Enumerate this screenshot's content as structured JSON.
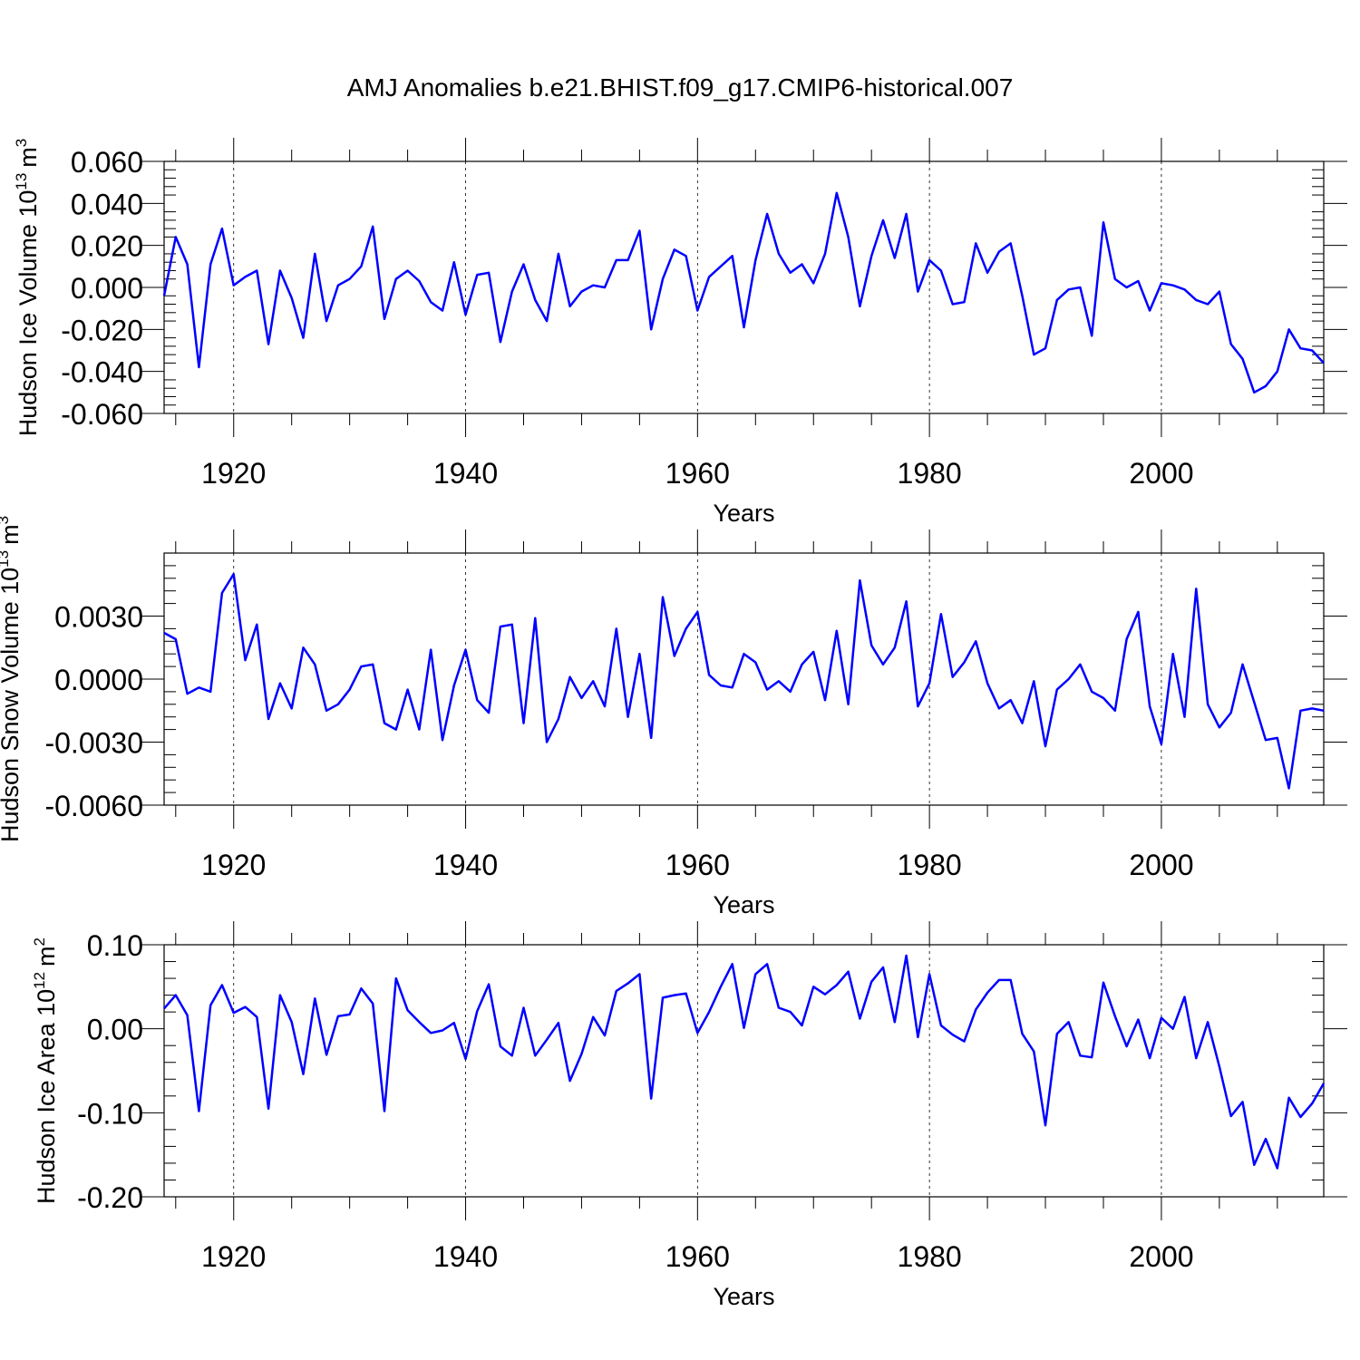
{
  "title": "AMJ Anomalies b.e21.BHIST.f09_g17.CMIP6-historical.007",
  "colors": {
    "line": "#0000ff",
    "axis": "#000000",
    "grid": "#000000"
  },
  "chart_data": [
    {
      "type": "line",
      "ylabel_main": "Hudson Ice Volume 10",
      "ylabel_exp": "13",
      "ylabel_unit": "m",
      "ylabel_unit_exp": "3",
      "xlabel": "Years",
      "xlim": [
        1914,
        2014
      ],
      "ylim": [
        -0.06,
        0.06
      ],
      "yticks": [
        -0.06,
        -0.04,
        -0.02,
        0.0,
        0.02,
        0.04,
        0.06
      ],
      "ytick_labels": [
        "-0.060",
        "-0.040",
        "-0.020",
        "0.000",
        "0.020",
        "0.040",
        "0.060"
      ],
      "xticks": [
        1920,
        1940,
        1960,
        1980,
        2000
      ],
      "xtick_labels": [
        "1920",
        "1940",
        "1960",
        "1980",
        "2000"
      ],
      "x_start": 1914,
      "values": [
        -0.004,
        0.024,
        0.011,
        -0.038,
        0.011,
        0.028,
        0.001,
        0.005,
        0.008,
        -0.027,
        0.008,
        -0.005,
        -0.024,
        0.016,
        -0.016,
        0.001,
        0.004,
        0.01,
        0.029,
        -0.015,
        0.004,
        0.008,
        0.003,
        -0.007,
        -0.011,
        0.012,
        -0.013,
        0.006,
        0.007,
        -0.026,
        -0.002,
        0.011,
        -0.006,
        -0.016,
        0.016,
        -0.009,
        -0.002,
        0.001,
        0.0,
        0.013,
        0.013,
        0.027,
        -0.02,
        0.004,
        0.018,
        0.015,
        -0.011,
        0.005,
        0.01,
        0.015,
        -0.019,
        0.013,
        0.035,
        0.016,
        0.007,
        0.011,
        0.002,
        0.016,
        0.045,
        0.024,
        -0.009,
        0.015,
        0.032,
        0.014,
        0.035,
        -0.002,
        0.013,
        0.008,
        -0.008,
        -0.007,
        0.021,
        0.007,
        0.017,
        0.021,
        -0.004,
        -0.032,
        -0.029,
        -0.006,
        -0.001,
        0.0,
        -0.023,
        0.031,
        0.004,
        0.0,
        0.003,
        -0.011,
        0.002,
        0.001,
        -0.001,
        -0.006,
        -0.008,
        -0.002,
        -0.027,
        -0.034,
        -0.05,
        -0.047,
        -0.04,
        -0.02,
        -0.029,
        -0.03,
        -0.036
      ]
    },
    {
      "type": "line",
      "ylabel_main": "Hudson Snow Volume 10",
      "ylabel_exp": "13",
      "ylabel_unit": "m",
      "ylabel_unit_exp": "3",
      "xlabel": "Years",
      "xlim": [
        1914,
        2014
      ],
      "ylim": [
        -0.006,
        0.006
      ],
      "yticks": [
        -0.006,
        -0.003,
        0.0,
        0.003
      ],
      "ytick_labels": [
        "-0.0060",
        "-0.0030",
        "0.0000",
        "0.0030"
      ],
      "xticks": [
        1920,
        1940,
        1960,
        1980,
        2000
      ],
      "xtick_labels": [
        "1920",
        "1940",
        "1960",
        "1980",
        "2000"
      ],
      "x_start": 1914,
      "values": [
        0.0022,
        0.0019,
        -0.0007,
        -0.0004,
        -0.0006,
        0.0041,
        0.005,
        0.0009,
        0.0026,
        -0.0019,
        -0.0002,
        -0.0014,
        0.0015,
        0.0007,
        -0.0015,
        -0.0012,
        -0.0005,
        0.0006,
        0.0007,
        -0.0021,
        -0.0024,
        -0.0005,
        -0.0024,
        0.0014,
        -0.0029,
        -0.0003,
        0.0014,
        -0.001,
        -0.0016,
        0.0025,
        0.0026,
        -0.0021,
        0.0029,
        -0.003,
        -0.0019,
        0.0001,
        -0.0009,
        -0.0001,
        -0.0013,
        0.0024,
        -0.0018,
        0.0012,
        -0.0028,
        0.0039,
        0.0011,
        0.0024,
        0.0032,
        0.0002,
        -0.0003,
        -0.0004,
        0.0012,
        0.0008,
        -0.0005,
        -0.0001,
        -0.0006,
        0.0007,
        0.0013,
        -0.001,
        0.0023,
        -0.0012,
        0.0047,
        0.0016,
        0.0007,
        0.0015,
        0.0037,
        -0.0013,
        -0.0002,
        0.0031,
        0.0001,
        0.0008,
        0.0018,
        -0.0002,
        -0.0014,
        -0.001,
        -0.0021,
        -0.0001,
        -0.0032,
        -0.0005,
        0.0,
        0.0007,
        -0.0006,
        -0.0009,
        -0.0015,
        0.0019,
        0.0032,
        -0.0013,
        -0.0031,
        0.0012,
        -0.0018,
        0.0043,
        -0.0012,
        -0.0023,
        -0.0016,
        0.0007,
        -0.0011,
        -0.0029,
        -0.0028,
        -0.0052,
        -0.0015,
        -0.0014,
        -0.0015
      ]
    },
    {
      "type": "line",
      "ylabel_main": "Hudson Ice Area 10",
      "ylabel_exp": "12",
      "ylabel_unit": "m",
      "ylabel_unit_exp": "2",
      "xlabel": "Years",
      "xlim": [
        1914,
        2014
      ],
      "ylim": [
        -0.2,
        0.1
      ],
      "yticks": [
        -0.2,
        -0.1,
        0.0,
        0.1
      ],
      "ytick_labels": [
        "-0.20",
        "-0.10",
        "0.00",
        "0.10"
      ],
      "xticks": [
        1920,
        1940,
        1960,
        1980,
        2000
      ],
      "xtick_labels": [
        "1920",
        "1940",
        "1960",
        "1980",
        "2000"
      ],
      "x_start": 1914,
      "values": [
        0.024,
        0.04,
        0.016,
        -0.098,
        0.028,
        0.052,
        0.019,
        0.026,
        0.014,
        -0.095,
        0.04,
        0.008,
        -0.054,
        0.036,
        -0.031,
        0.015,
        0.017,
        0.048,
        0.03,
        -0.098,
        0.06,
        0.022,
        0.008,
        -0.005,
        -0.002,
        0.007,
        -0.036,
        0.021,
        0.053,
        -0.021,
        -0.032,
        0.025,
        -0.032,
        -0.013,
        0.007,
        -0.062,
        -0.03,
        0.014,
        -0.008,
        0.045,
        0.054,
        0.065,
        -0.083,
        0.037,
        0.04,
        0.042,
        -0.005,
        0.02,
        0.05,
        0.077,
        0.001,
        0.065,
        0.077,
        0.025,
        0.02,
        0.004,
        0.05,
        0.041,
        0.052,
        0.068,
        0.012,
        0.056,
        0.073,
        0.008,
        0.087,
        -0.01,
        0.065,
        0.004,
        -0.007,
        -0.015,
        0.023,
        0.043,
        0.058,
        0.058,
        -0.006,
        -0.027,
        -0.115,
        -0.006,
        0.008,
        -0.032,
        -0.034,
        0.055,
        0.015,
        -0.021,
        0.011,
        -0.035,
        0.013,
        0.0,
        0.038,
        -0.035,
        0.008,
        -0.045,
        -0.104,
        -0.087,
        -0.162,
        -0.131,
        -0.166,
        -0.082,
        -0.105,
        -0.089,
        -0.065
      ]
    }
  ]
}
